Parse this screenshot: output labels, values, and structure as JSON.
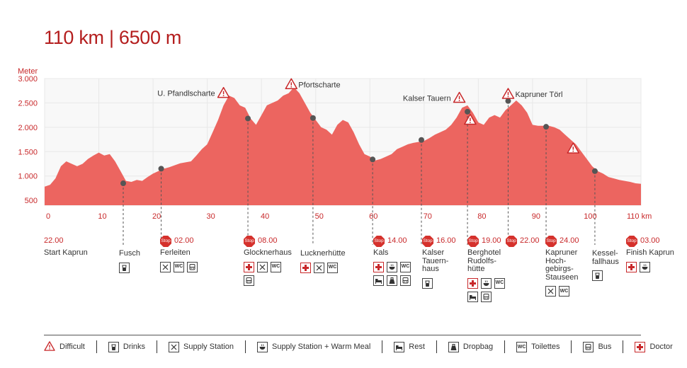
{
  "title": "110 km | 6500 m",
  "chart_data": {
    "type": "area",
    "ylabel": "Meter",
    "xunit": "km",
    "xlim": [
      0,
      110
    ],
    "ylim": [
      400,
      3000
    ],
    "yticks": [
      500,
      1000,
      1500,
      2000,
      2500,
      3000
    ],
    "ytick_labels": [
      "500",
      "1.000",
      "1.500",
      "2.000",
      "2.500",
      "3.000"
    ],
    "xticks": [
      0,
      10,
      20,
      30,
      40,
      50,
      60,
      70,
      80,
      90,
      100,
      110
    ],
    "xtick_labels": [
      "0",
      "10",
      "20",
      "30",
      "40",
      "50",
      "60",
      "70",
      "80",
      "90",
      "100",
      "110 km"
    ],
    "profile": [
      [
        0,
        780
      ],
      [
        1,
        820
      ],
      [
        2,
        950
      ],
      [
        3,
        1200
      ],
      [
        4,
        1300
      ],
      [
        5,
        1250
      ],
      [
        6,
        1200
      ],
      [
        7,
        1250
      ],
      [
        8,
        1350
      ],
      [
        9,
        1420
      ],
      [
        10,
        1480
      ],
      [
        11,
        1420
      ],
      [
        12,
        1450
      ],
      [
        13,
        1300
      ],
      [
        14,
        1100
      ],
      [
        15,
        900
      ],
      [
        16,
        880
      ],
      [
        17,
        920
      ],
      [
        18,
        900
      ],
      [
        19,
        980
      ],
      [
        20,
        1050
      ],
      [
        21,
        1100
      ],
      [
        22,
        1150
      ],
      [
        23,
        1180
      ],
      [
        24,
        1220
      ],
      [
        25,
        1260
      ],
      [
        26,
        1280
      ],
      [
        27,
        1300
      ],
      [
        28,
        1420
      ],
      [
        29,
        1550
      ],
      [
        30,
        1650
      ],
      [
        31,
        1900
      ],
      [
        32,
        2150
      ],
      [
        33,
        2450
      ],
      [
        34,
        2650
      ],
      [
        35,
        2600
      ],
      [
        36,
        2450
      ],
      [
        37,
        2400
      ],
      [
        38,
        2180
      ],
      [
        39,
        2050
      ],
      [
        40,
        2250
      ],
      [
        41,
        2450
      ],
      [
        42,
        2500
      ],
      [
        43,
        2550
      ],
      [
        44,
        2650
      ],
      [
        45,
        2700
      ],
      [
        46,
        2820
      ],
      [
        47,
        2700
      ],
      [
        48,
        2500
      ],
      [
        49,
        2300
      ],
      [
        50,
        2150
      ],
      [
        51,
        2000
      ],
      [
        52,
        1950
      ],
      [
        53,
        1850
      ],
      [
        54,
        2050
      ],
      [
        55,
        2150
      ],
      [
        56,
        2100
      ],
      [
        57,
        1900
      ],
      [
        58,
        1650
      ],
      [
        59,
        1450
      ],
      [
        60,
        1400
      ],
      [
        61,
        1320
      ],
      [
        62,
        1350
      ],
      [
        63,
        1400
      ],
      [
        64,
        1450
      ],
      [
        65,
        1550
      ],
      [
        66,
        1600
      ],
      [
        67,
        1650
      ],
      [
        68,
        1680
      ],
      [
        69,
        1700
      ],
      [
        70,
        1720
      ],
      [
        71,
        1780
      ],
      [
        72,
        1850
      ],
      [
        73,
        1900
      ],
      [
        74,
        1950
      ],
      [
        75,
        2050
      ],
      [
        76,
        2200
      ],
      [
        77,
        2400
      ],
      [
        78,
        2450
      ],
      [
        79,
        2300
      ],
      [
        80,
        2100
      ],
      [
        81,
        2050
      ],
      [
        82,
        2200
      ],
      [
        83,
        2250
      ],
      [
        84,
        2200
      ],
      [
        85,
        2350
      ],
      [
        86,
        2450
      ],
      [
        87,
        2550
      ],
      [
        88,
        2450
      ],
      [
        89,
        2300
      ],
      [
        90,
        2050
      ],
      [
        91,
        2030
      ],
      [
        92,
        2030
      ],
      [
        93,
        2030
      ],
      [
        94,
        2000
      ],
      [
        95,
        1950
      ],
      [
        96,
        1850
      ],
      [
        97,
        1750
      ],
      [
        98,
        1650
      ],
      [
        99,
        1500
      ],
      [
        100,
        1350
      ],
      [
        101,
        1200
      ],
      [
        102,
        1100
      ],
      [
        103,
        1050
      ],
      [
        104,
        980
      ],
      [
        105,
        950
      ],
      [
        106,
        920
      ],
      [
        107,
        900
      ],
      [
        108,
        880
      ],
      [
        109,
        850
      ],
      [
        110,
        840
      ]
    ],
    "markers": [
      {
        "km": 14.5,
        "alt": 850
      },
      {
        "km": 21.5,
        "alt": 1150
      },
      {
        "km": 37.5,
        "alt": 2180
      },
      {
        "km": 49.5,
        "alt": 2190
      },
      {
        "km": 60.5,
        "alt": 1340
      },
      {
        "km": 69.5,
        "alt": 1740
      },
      {
        "km": 78,
        "alt": 2320
      },
      {
        "km": 85.5,
        "alt": 2540
      },
      {
        "km": 92.5,
        "alt": 2010
      },
      {
        "km": 101.5,
        "alt": 1100
      }
    ],
    "annotations": [
      {
        "text": "U. Pfandlscharte",
        "km": 33,
        "alt": 2700,
        "side": "left"
      },
      {
        "text": "Pfortscharte",
        "km": 45.5,
        "alt": 2880,
        "side": "right"
      },
      {
        "text": "Kalser Tauern",
        "km": 76.5,
        "alt": 2600,
        "side": "left"
      },
      {
        "text": "Kapruner Törl",
        "km": 85.5,
        "alt": 2680,
        "side": "right"
      }
    ],
    "warnings": [
      {
        "km": 78.5,
        "alt": 2150
      },
      {
        "km": 97.5,
        "alt": 1560
      }
    ]
  },
  "stations": [
    {
      "name": "Start Kaprun",
      "time": "22.00",
      "stop": false,
      "icons": []
    },
    {
      "name": "Fusch",
      "time": "",
      "stop": false,
      "icons": [
        "drinks"
      ]
    },
    {
      "name": "Ferleiten",
      "time": "02.00",
      "stop": true,
      "icons": [
        "supply",
        "wc",
        "bus"
      ]
    },
    {
      "name": "Glocknerhaus",
      "time": "08.00",
      "stop": true,
      "icons": [
        "doctor",
        "supply",
        "wc",
        "bus"
      ]
    },
    {
      "name": "Lucknerhütte",
      "time": "",
      "stop": false,
      "icons": [
        "doctor",
        "supply",
        "wc"
      ]
    },
    {
      "name": "Kals",
      "time": "14.00",
      "stop": true,
      "icons": [
        "doctor",
        "meal",
        "wc",
        "rest",
        "dropbag",
        "bus"
      ]
    },
    {
      "name": "Kalser\nTauern-\nhaus",
      "time": "16.00",
      "stop": true,
      "icons": [
        "drinks"
      ]
    },
    {
      "name": "Berghotel\nRudolfs-\nhütte",
      "time": "19.00",
      "stop": true,
      "icons": [
        "doctor",
        "meal",
        "wc",
        "rest",
        "bus"
      ]
    },
    {
      "name": "",
      "time": "22.00",
      "stop": true,
      "icons": []
    },
    {
      "name": "Kapruner\nHoch-\ngebirgs-\nStauseen",
      "time": "24.00",
      "stop": true,
      "icons": [
        "supply",
        "wc"
      ]
    },
    {
      "name": "Kessel-\nfallhaus",
      "time": "",
      "stop": false,
      "icons": [
        "drinks"
      ]
    },
    {
      "name": "Finish Kaprun",
      "time": "03.00",
      "stop": true,
      "icons": [
        "doctor",
        "meal"
      ]
    }
  ],
  "stop_label": "Stop",
  "legend": [
    {
      "icon": "difficult",
      "label": "Difficult"
    },
    {
      "icon": "drinks",
      "label": "Drinks"
    },
    {
      "icon": "supply",
      "label": "Supply Station"
    },
    {
      "icon": "meal",
      "label": "Supply Station + Warm Meal"
    },
    {
      "icon": "rest",
      "label": "Rest"
    },
    {
      "icon": "dropbag",
      "label": "Dropbag"
    },
    {
      "icon": "wc",
      "label": "Toilettes"
    },
    {
      "icon": "bus",
      "label": "Bus"
    },
    {
      "icon": "doctor",
      "label": "Doctor"
    }
  ],
  "colors": {
    "area": "#ec6560",
    "accent": "#c8282a",
    "grid": "#e8e8e8",
    "marker": "#555555"
  }
}
